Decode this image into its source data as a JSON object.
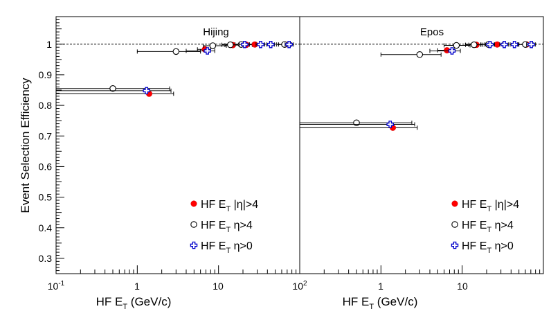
{
  "chart_data": {
    "type": "scatter",
    "ylabel": "Event Selection Efficiency",
    "xscale": "log",
    "xlim": [
      0.1,
      100
    ],
    "ylim": [
      0.25,
      1.09
    ],
    "yticks": [
      0.3,
      0.4,
      0.5,
      0.6,
      0.7,
      0.8,
      0.9,
      1
    ],
    "reference_line_y": 1,
    "legend_placement": "bottom-right",
    "legend_symbols": [
      "HF E",
      "HF E",
      "HF E"
    ],
    "legend_subscripts": [
      "T",
      "T",
      "T"
    ],
    "legend_conditions": [
      "|η|>4",
      "η>4",
      "η>0"
    ],
    "markers": [
      "filled-circle-red",
      "open-circle-black",
      "open-cross-blue"
    ],
    "panels": [
      {
        "title": "Hijing",
        "xlabel": "HF E",
        "xlabel_sub": "T",
        "xlabel_unit": " (GeV/c)",
        "xtick_labels": [
          "10",
          "1",
          "10",
          "10"
        ],
        "xtick_exponents": [
          "-1",
          "",
          "",
          "2"
        ],
        "series": [
          {
            "points": [
              {
                "x": 1.4,
                "y": 0.838,
                "xlo": 0.1,
                "xhi": 2.8
              },
              {
                "x": 6.8,
                "y": 0.983,
                "xlo": 5.5,
                "xhi": 8.0
              },
              {
                "x": 15,
                "y": 0.997,
                "xlo": 12,
                "xhi": 18
              },
              {
                "x": 22,
                "y": 0.998,
                "xlo": 18,
                "xhi": 26
              },
              {
                "x": 28,
                "y": 0.999,
                "xlo": 24,
                "xhi": 33
              },
              {
                "x": 66,
                "y": 0.999,
                "xlo": 55,
                "xhi": 78
              }
            ]
          },
          {
            "points": [
              {
                "x": 0.5,
                "y": 0.855,
                "xlo": 0.1,
                "xhi": 2.5
              },
              {
                "x": 3.0,
                "y": 0.976,
                "xlo": 1.0,
                "xhi": 6.0
              },
              {
                "x": 8.5,
                "y": 0.995,
                "xlo": 6.5,
                "xhi": 12.5
              },
              {
                "x": 14,
                "y": 0.998,
                "xlo": 11,
                "xhi": 18
              },
              {
                "x": 19,
                "y": 0.999,
                "xlo": 16,
                "xhi": 22
              },
              {
                "x": 65,
                "y": 0.999,
                "xlo": 52,
                "xhi": 80
              }
            ]
          },
          {
            "points": [
              {
                "x": 1.3,
                "y": 0.848,
                "xlo": 0.1,
                "xhi": 2.6
              },
              {
                "x": 7.3,
                "y": 0.978,
                "xlo": 4.0,
                "xhi": 9.0
              },
              {
                "x": 21,
                "y": 0.999,
                "xlo": 18,
                "xhi": 24
              },
              {
                "x": 33,
                "y": 0.999,
                "xlo": 29,
                "xhi": 37
              },
              {
                "x": 44,
                "y": 0.999,
                "xlo": 39,
                "xhi": 49
              },
              {
                "x": 74,
                "y": 0.999,
                "xlo": 66,
                "xhi": 84
              }
            ]
          }
        ]
      },
      {
        "title": "Epos",
        "xlabel": "HF E",
        "xlabel_sub": "T",
        "xlabel_unit": " (GeV/c)",
        "xtick_labels": [
          "1",
          "10"
        ],
        "xtick_exponents": [
          "",
          ""
        ],
        "series": [
          {
            "points": [
              {
                "x": 1.4,
                "y": 0.727,
                "xlo": 0.1,
                "xhi": 2.8
              },
              {
                "x": 6.5,
                "y": 0.98,
                "xlo": 5.0,
                "xhi": 8.0
              },
              {
                "x": 15,
                "y": 0.998,
                "xlo": 12,
                "xhi": 18
              },
              {
                "x": 27,
                "y": 0.999,
                "xlo": 23,
                "xhi": 31
              },
              {
                "x": 62,
                "y": 0.999,
                "xlo": 50,
                "xhi": 76
              }
            ]
          },
          {
            "points": [
              {
                "x": 0.5,
                "y": 0.743,
                "xlo": 0.1,
                "xhi": 2.4
              },
              {
                "x": 3.0,
                "y": 0.966,
                "xlo": 1.0,
                "xhi": 5.5
              },
              {
                "x": 8.5,
                "y": 0.996,
                "xlo": 6.0,
                "xhi": 12.5
              },
              {
                "x": 14,
                "y": 0.998,
                "xlo": 11,
                "xhi": 17
              },
              {
                "x": 21,
                "y": 0.999,
                "xlo": 17,
                "xhi": 25
              },
              {
                "x": 60,
                "y": 0.999,
                "xlo": 48,
                "xhi": 74
              }
            ]
          },
          {
            "points": [
              {
                "x": 1.3,
                "y": 0.738,
                "xlo": 0.1,
                "xhi": 2.6
              },
              {
                "x": 7.5,
                "y": 0.978,
                "xlo": 4.0,
                "xhi": 9.5
              },
              {
                "x": 22,
                "y": 0.999,
                "xlo": 19,
                "xhi": 25
              },
              {
                "x": 33,
                "y": 0.999,
                "xlo": 29,
                "xhi": 37
              },
              {
                "x": 44,
                "y": 0.999,
                "xlo": 39,
                "xhi": 49
              },
              {
                "x": 71,
                "y": 0.999,
                "xlo": 62,
                "xhi": 80
              }
            ]
          }
        ]
      }
    ]
  }
}
